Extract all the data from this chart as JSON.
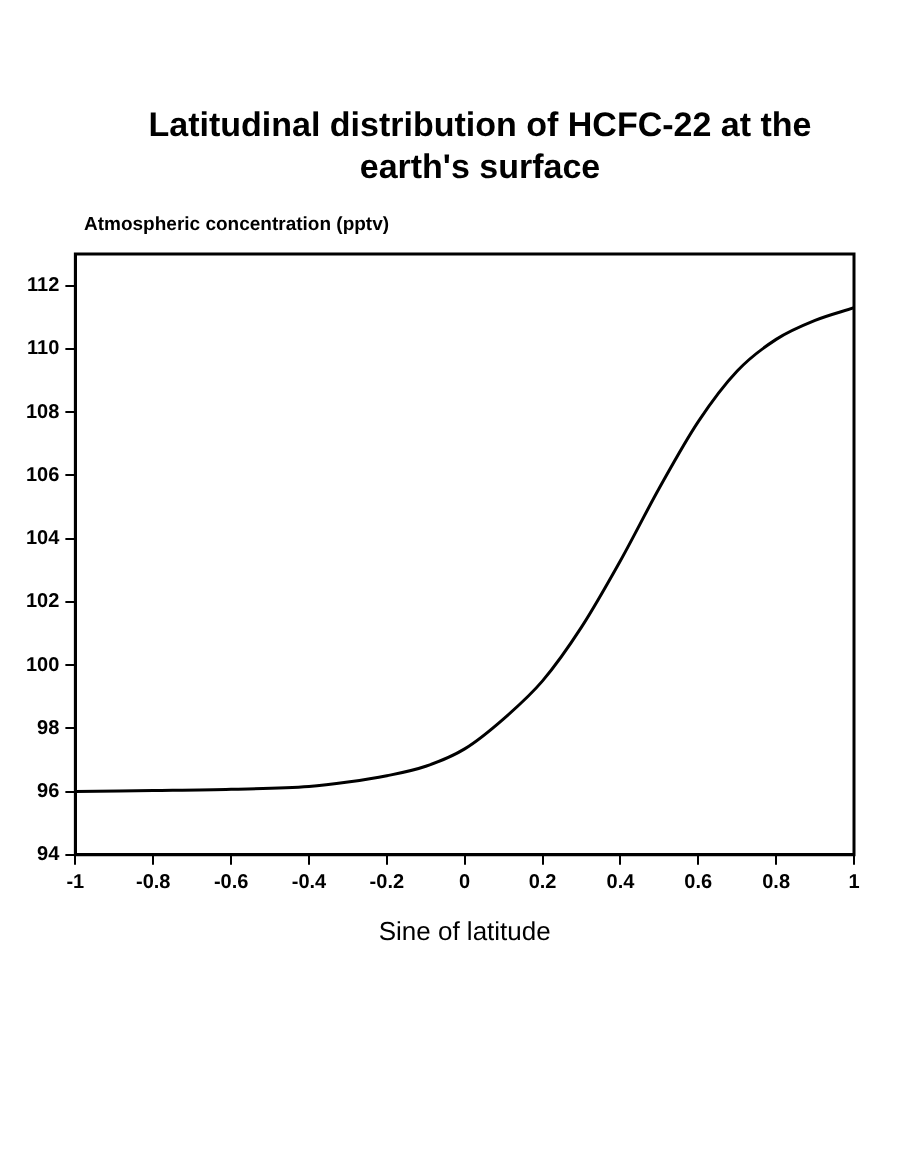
{
  "chart_data": {
    "type": "line",
    "title": "Latitudinal distribution of HCFC-22 at the earth's surface",
    "ylabel": "Atmospheric concentration (pptv)",
    "xlabel": "Sine of latitude",
    "x": [
      -1,
      -0.8,
      -0.6,
      -0.4,
      -0.3,
      -0.2,
      -0.1,
      0,
      0.1,
      0.2,
      0.3,
      0.4,
      0.5,
      0.6,
      0.7,
      0.8,
      0.9,
      1
    ],
    "series": [
      {
        "color": "#000000",
        "values": [
          96.0,
          96.03,
          96.07,
          96.16,
          96.3,
          96.5,
          96.8,
          97.35,
          98.3,
          99.5,
          101.2,
          103.3,
          105.6,
          107.7,
          109.3,
          110.3,
          110.9,
          111.3
        ]
      }
    ],
    "xlim": [
      -1,
      1
    ],
    "xticks": [
      -1,
      -0.8,
      -0.6,
      -0.4,
      -0.2,
      0,
      0.2,
      0.4,
      0.6,
      0.8,
      1
    ],
    "ylim": [
      94,
      113
    ],
    "yticks": [
      94,
      96,
      98,
      100,
      102,
      104,
      106,
      108,
      110,
      112
    ],
    "grid": false,
    "legend": false,
    "marker": "none",
    "line_style": "solid"
  }
}
